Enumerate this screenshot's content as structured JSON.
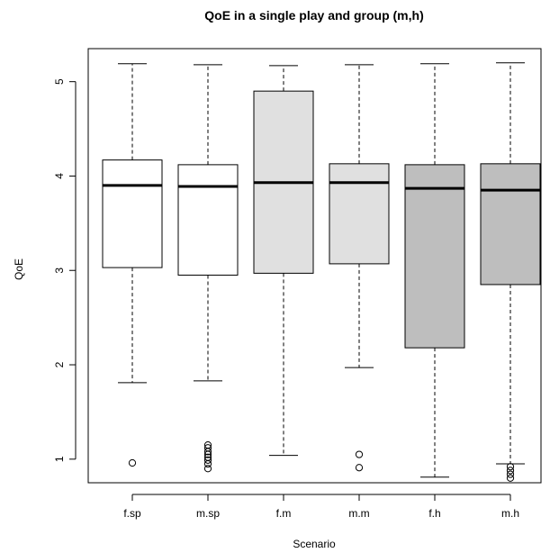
{
  "chart_data": {
    "type": "boxplot",
    "title": "QoE in a single play and group (m,h)",
    "xlabel": "Scenario",
    "ylabel": "QoE",
    "ylim": [
      0.75,
      5.35
    ],
    "yticks": [
      "1",
      "2",
      "3",
      "4",
      "5"
    ],
    "categories": [
      "f.sp",
      "m.sp",
      "f.m",
      "m.m",
      "f.h",
      "m.h"
    ],
    "boxes": [
      {
        "name": "f.sp",
        "whisker_low": 1.81,
        "q1": 3.03,
        "median": 3.9,
        "q3": 4.17,
        "whisker_high": 5.19,
        "outliers": [
          0.96
        ],
        "fill": "#ffffff"
      },
      {
        "name": "m.sp",
        "whisker_low": 1.83,
        "q1": 2.95,
        "median": 3.89,
        "q3": 4.12,
        "whisker_high": 5.18,
        "outliers": [
          0.9,
          0.95,
          0.99,
          1.02,
          1.05,
          1.08,
          1.12,
          1.15
        ],
        "fill": "#ffffff"
      },
      {
        "name": "f.m",
        "whisker_low": 1.04,
        "q1": 2.97,
        "median": 3.93,
        "q3": 4.9,
        "whisker_high": 5.17,
        "outliers": [],
        "fill": "#e0e0e0"
      },
      {
        "name": "m.m",
        "whisker_low": 1.97,
        "q1": 3.07,
        "median": 3.93,
        "q3": 4.13,
        "whisker_high": 5.18,
        "outliers": [
          0.91,
          1.05
        ],
        "fill": "#e0e0e0"
      },
      {
        "name": "f.h",
        "whisker_low": 0.81,
        "q1": 2.18,
        "median": 3.87,
        "q3": 4.12,
        "whisker_high": 5.19,
        "outliers": [],
        "fill": "#bebebe"
      },
      {
        "name": "m.h",
        "whisker_low": 0.95,
        "q1": 2.85,
        "median": 3.85,
        "q3": 4.13,
        "whisker_high": 5.2,
        "outliers": [
          0.8,
          0.84,
          0.88,
          0.92
        ],
        "fill": "#bebebe"
      }
    ],
    "grid": false
  }
}
